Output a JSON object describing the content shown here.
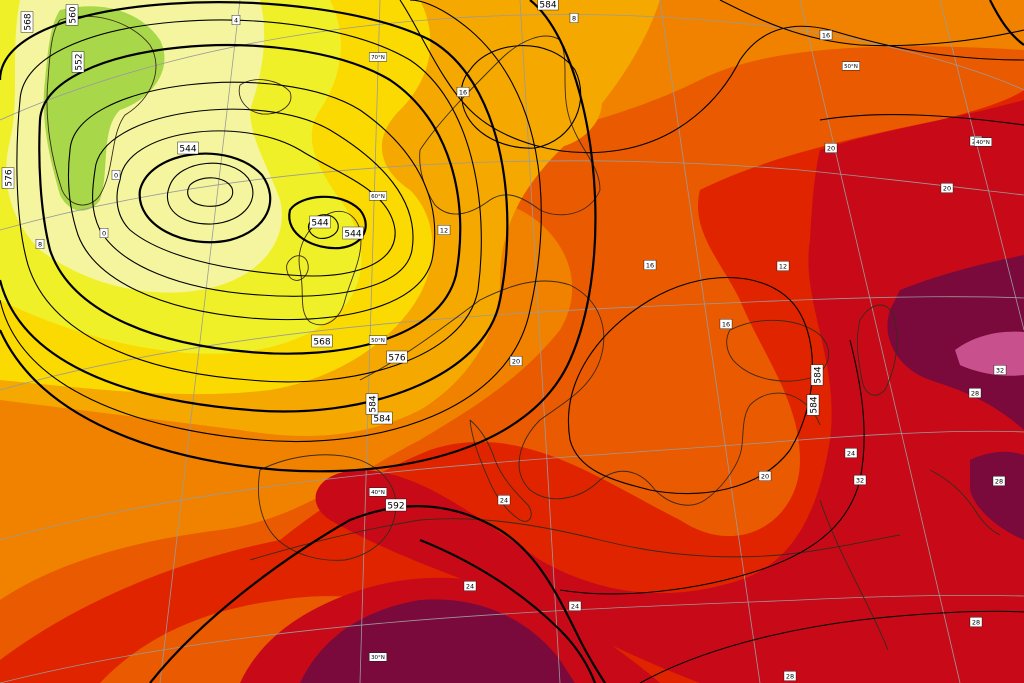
{
  "colors": {
    "band_le_12": "#a8d84a",
    "band_12_14": "#f5f5a0",
    "band_14_16": "#f0f028",
    "band_16_18": "#fada00",
    "band_18_20": "#f5a800",
    "band_20_22": "#f08200",
    "band_22_24": "#ea5a00",
    "band_24_26": "#e02400",
    "band_26_28": "#c80a18",
    "band_28_32": "#7a0a3c",
    "band_ge_32": "#c8508c",
    "contour_line": "#000000",
    "coastline": "#3a2a1a",
    "graticule": "#9a9a9a"
  },
  "geopotential_labels": [
    "568",
    "560",
    "552",
    "576",
    "544",
    "544",
    "584",
    "568",
    "576",
    "584",
    "592",
    "584",
    "584",
    "584",
    "544"
  ],
  "temperature_labels": [
    "8",
    "0",
    "4",
    "8",
    "0",
    "12",
    "16",
    "20",
    "16",
    "16",
    "20",
    "12",
    "16",
    "20",
    "20",
    "24",
    "28",
    "32",
    "28",
    "24",
    "28",
    "24",
    "24",
    "28",
    "28",
    "32"
  ],
  "latitude_labels": [
    "70°N",
    "60°N",
    "50°N",
    "40°N",
    "30°N",
    "50°N",
    "40°N"
  ]
}
